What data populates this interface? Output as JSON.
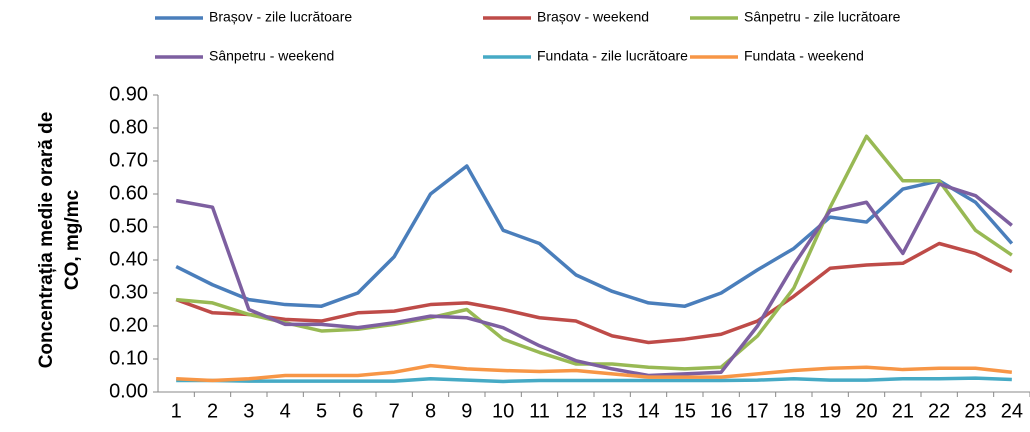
{
  "chart_data": {
    "type": "line",
    "y_label_lines": [
      "Concentrația medie orară de",
      "CO, mg/mc"
    ],
    "categories": [
      1,
      2,
      3,
      4,
      5,
      6,
      7,
      8,
      9,
      10,
      11,
      12,
      13,
      14,
      15,
      16,
      17,
      18,
      19,
      20,
      21,
      22,
      23,
      24
    ],
    "ylim": [
      0,
      0.9
    ],
    "yticks": [
      {
        "value": 0,
        "label": "0.00"
      },
      {
        "value": 0.1,
        "label": "0.10"
      },
      {
        "value": 0.2,
        "label": "0.20"
      },
      {
        "value": 0.3,
        "label": "0.30"
      },
      {
        "value": 0.4,
        "label": "0.40"
      },
      {
        "value": 0.5,
        "label": "0.50"
      },
      {
        "value": 0.6,
        "label": "0.60"
      },
      {
        "value": 0.7,
        "label": "0.70"
      },
      {
        "value": 0.8,
        "label": "0.80"
      },
      {
        "value": 0.9,
        "label": "0.90"
      }
    ],
    "grid": false,
    "legend": "top",
    "series": [
      {
        "name": "Brașov - zile lucrătoare",
        "color": "#4a7ebb",
        "values": [
          0.38,
          0.325,
          0.28,
          0.265,
          0.26,
          0.3,
          0.41,
          0.6,
          0.685,
          0.49,
          0.45,
          0.355,
          0.305,
          0.27,
          0.26,
          0.3,
          0.37,
          0.435,
          0.53,
          0.515,
          0.615,
          0.64,
          0.575,
          0.45
        ]
      },
      {
        "name": "Brașov - weekend",
        "color": "#be4b48",
        "values": [
          0.28,
          0.24,
          0.235,
          0.22,
          0.215,
          0.24,
          0.245,
          0.265,
          0.27,
          0.25,
          0.225,
          0.215,
          0.17,
          0.15,
          0.16,
          0.175,
          0.215,
          0.29,
          0.375,
          0.385,
          0.39,
          0.45,
          0.42,
          0.365
        ]
      },
      {
        "name": "Sânpetru - zile lucrătoare",
        "color": "#98b954",
        "values": [
          0.28,
          0.27,
          0.235,
          0.21,
          0.185,
          0.19,
          0.205,
          0.225,
          0.25,
          0.16,
          0.12,
          0.085,
          0.085,
          0.075,
          0.07,
          0.075,
          0.17,
          0.315,
          0.56,
          0.775,
          0.64,
          0.64,
          0.49,
          0.415
        ]
      },
      {
        "name": "Sânpetru - weekend",
        "color": "#7d5fa0",
        "values": [
          0.58,
          0.56,
          0.25,
          0.205,
          0.205,
          0.195,
          0.21,
          0.23,
          0.225,
          0.195,
          0.14,
          0.095,
          0.07,
          0.05,
          0.055,
          0.06,
          0.2,
          0.385,
          0.55,
          0.575,
          0.42,
          0.63,
          0.595,
          0.505
        ]
      },
      {
        "name": "Fundata - zile lucrătoare",
        "color": "#46aac5",
        "values": [
          0.035,
          0.035,
          0.033,
          0.033,
          0.033,
          0.033,
          0.033,
          0.04,
          0.036,
          0.032,
          0.035,
          0.035,
          0.035,
          0.035,
          0.035,
          0.035,
          0.036,
          0.04,
          0.036,
          0.036,
          0.04,
          0.04,
          0.042,
          0.038
        ]
      },
      {
        "name": "Fundata - weekend",
        "color": "#f79646",
        "values": [
          0.04,
          0.035,
          0.04,
          0.05,
          0.05,
          0.05,
          0.06,
          0.08,
          0.07,
          0.065,
          0.062,
          0.065,
          0.055,
          0.045,
          0.045,
          0.045,
          0.055,
          0.065,
          0.072,
          0.075,
          0.068,
          0.072,
          0.072,
          0.06
        ]
      }
    ]
  }
}
